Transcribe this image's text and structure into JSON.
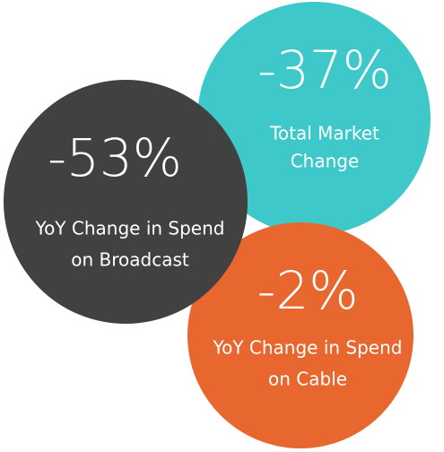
{
  "circles": [
    {
      "value": "-37%",
      "label_lines": [
        "Total Market",
        "Change"
      ]
    },
    {
      "value": "-2%",
      "label_lines": [
        "YoY Change in Spend",
        "on Cable"
      ]
    },
    {
      "value": "-53%",
      "label_lines": [
        "YoY Change in Spend",
        "on Broadcast"
      ]
    }
  ]
}
